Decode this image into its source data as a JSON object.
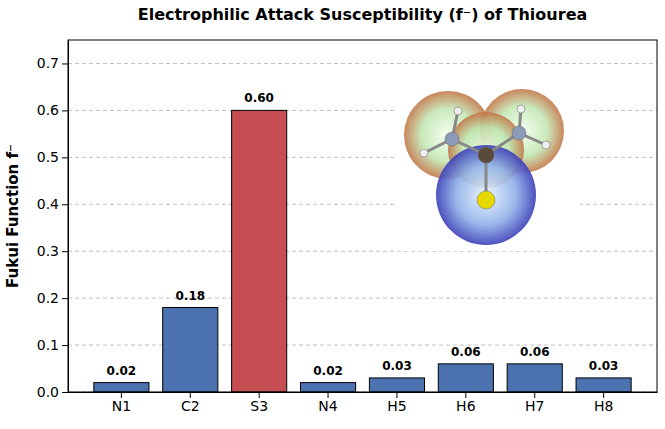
{
  "chart_data": {
    "type": "bar",
    "title": "Electrophilic Attack Susceptibility (f⁻) of Thiourea",
    "y_label": "Fukui Function f⁻",
    "categories": [
      "N1",
      "C2",
      "S3",
      "N4",
      "H5",
      "H6",
      "H7",
      "H8"
    ],
    "values": [
      0.02,
      0.18,
      0.6,
      0.02,
      0.03,
      0.06,
      0.06,
      0.03
    ],
    "value_labels": [
      "0.02",
      "0.18",
      "0.60",
      "0.02",
      "0.03",
      "0.06",
      "0.06",
      "0.03"
    ],
    "colors": [
      "#4c72b0",
      "#4c72b0",
      "#c44e52",
      "#4c72b0",
      "#4c72b0",
      "#4c72b0",
      "#4c72b0",
      "#4c72b0"
    ],
    "ylim": [
      0,
      0.75
    ],
    "yticks": [
      {
        "value": 0,
        "label": "0.0"
      },
      0.1,
      0.2,
      0.3,
      0.4,
      0.5,
      0.6,
      0.7
    ],
    "grid": true,
    "data_labels": true
  }
}
